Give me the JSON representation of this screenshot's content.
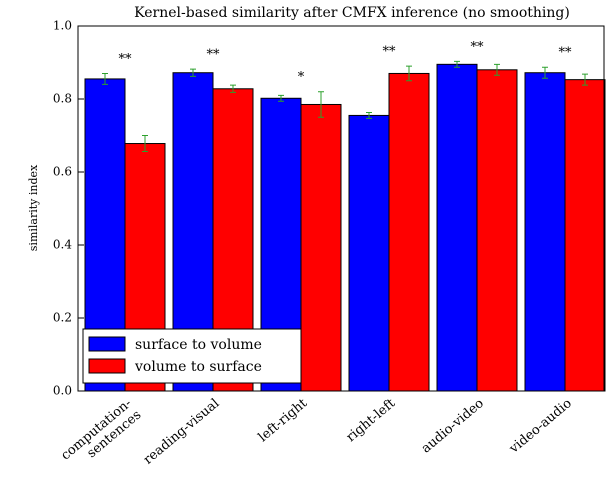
{
  "chart_data": {
    "type": "bar",
    "title": "Kernel-based similarity after CMFX inference (no smoothing)",
    "y_label": "similarity index",
    "categories": [
      "computation-\nsentences",
      "reading-visual",
      "left-right",
      "right-left",
      "audio-video",
      "video-audio"
    ],
    "series": [
      {
        "name": "surface to volume",
        "color": "#0000ff",
        "values": [
          0.855,
          0.872,
          0.802,
          0.755,
          0.895,
          0.872
        ],
        "errors": [
          0.015,
          0.01,
          0.008,
          0.008,
          0.008,
          0.015
        ]
      },
      {
        "name": "volume to surface",
        "color": "#ff0000",
        "values": [
          0.678,
          0.828,
          0.785,
          0.87,
          0.88,
          0.853
        ],
        "errors": [
          0.022,
          0.01,
          0.035,
          0.02,
          0.015,
          0.015
        ]
      }
    ],
    "annotations": [
      "**",
      "**",
      "*",
      "**",
      "**",
      "**"
    ],
    "error_color": "#2ca02c",
    "ylim": [
      0,
      1
    ],
    "yticks": [
      {
        "value": 0,
        "label": "0.0"
      },
      0.2,
      0.4,
      0.6,
      0.8,
      {
        "value": 1,
        "label": "1.0"
      }
    ],
    "legend": "lower left"
  }
}
